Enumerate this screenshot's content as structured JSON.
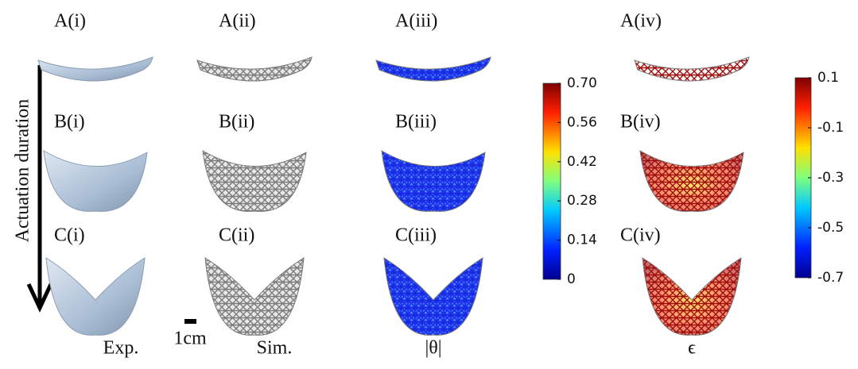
{
  "columns": [
    {
      "panels": [
        "A(i)",
        "B(i)",
        "C(i)"
      ],
      "caption": "Exp."
    },
    {
      "panels": [
        "A(ii)",
        "B(ii)",
        "C(ii)"
      ],
      "caption": "Sim."
    },
    {
      "panels": [
        "A(iii)",
        "B(iii)",
        "C(iii)"
      ],
      "caption": "|θ|"
    },
    {
      "panels": [
        "A(iv)",
        "B(iv)",
        "C(iv)"
      ],
      "caption": "ϵ"
    }
  ],
  "arrow_label": "Actuation duration",
  "scale_bar": "1cm",
  "colorbars": [
    {
      "lim": [
        0,
        0.7
      ],
      "ticks": [
        {
          "value": 0.7,
          "label": "0.70"
        },
        0.56,
        0.42,
        0.28,
        0.14,
        0
      ]
    },
    {
      "lim": [
        -0.7,
        0.1
      ],
      "ticks": [
        0.1,
        -0.1,
        -0.3,
        -0.5,
        -0.7
      ]
    }
  ]
}
